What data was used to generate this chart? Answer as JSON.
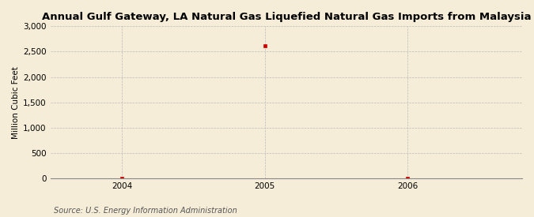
{
  "title": "Annual Gulf Gateway, LA Natural Gas Liquefied Natural Gas Imports from Malaysia",
  "ylabel": "Million Cubic Feet",
  "source": "Source: U.S. Energy Information Administration",
  "x_values": [
    2004,
    2005,
    2006
  ],
  "y_values": [
    0,
    2614,
    0
  ],
  "xlim": [
    2003.5,
    2006.8
  ],
  "ylim": [
    0,
    3000
  ],
  "yticks": [
    0,
    500,
    1000,
    1500,
    2000,
    2500,
    3000
  ],
  "xticks": [
    2004,
    2005,
    2006
  ],
  "marker_color": "#cc0000",
  "marker": "s",
  "marker_size": 3,
  "background_color": "#f5edd8",
  "grid_color": "#bbbbbb",
  "title_fontsize": 9.5,
  "label_fontsize": 7.5,
  "tick_fontsize": 7.5,
  "source_fontsize": 7
}
